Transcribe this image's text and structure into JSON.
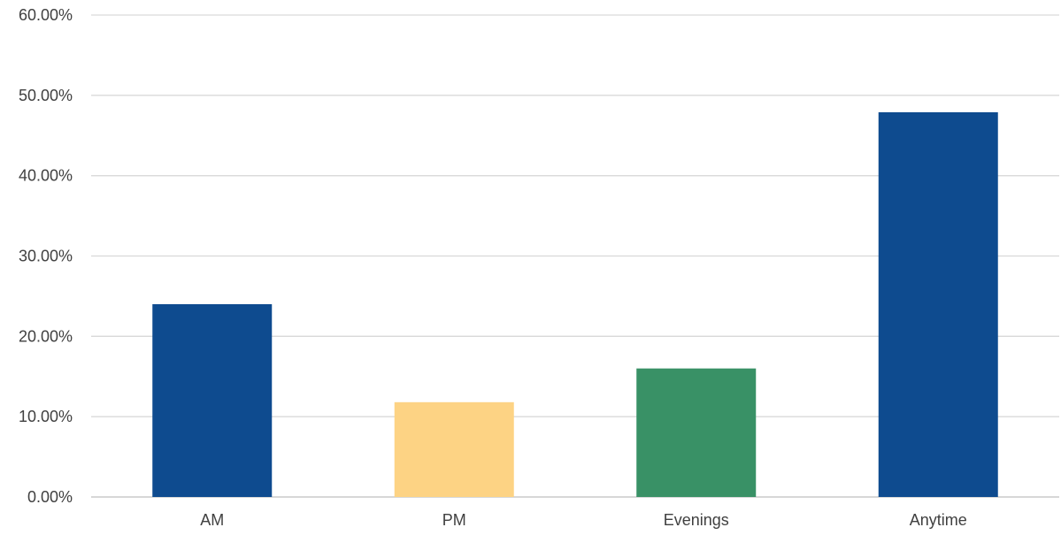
{
  "chart_data": {
    "type": "bar",
    "title": "",
    "xlabel": "",
    "ylabel": "",
    "categories": [
      "AM",
      "PM",
      "Evenings",
      "Anytime"
    ],
    "values": [
      0.24,
      0.118,
      0.16,
      0.479
    ],
    "colors": [
      "#0e4b8f",
      "#fdd384",
      "#399166",
      "#0e4b8f"
    ],
    "ylim": [
      0,
      0.6
    ],
    "yticks": [
      0,
      0.1,
      0.2,
      0.3,
      0.4,
      0.5,
      0.6
    ],
    "ytick_labels": [
      "0.00%",
      "10.00%",
      "20.00%",
      "30.00%",
      "40.00%",
      "50.00%",
      "60.00%"
    ],
    "grid": true,
    "legend": "none"
  }
}
